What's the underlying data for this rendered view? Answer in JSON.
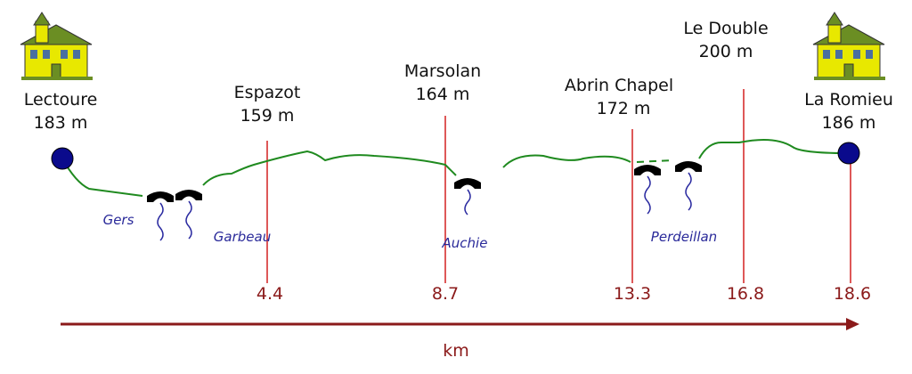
{
  "places": [
    {
      "name": "Lectoure",
      "elevation": "183 m"
    },
    {
      "name": "Espazot",
      "elevation": "159 m"
    },
    {
      "name": "Marsolan",
      "elevation": "164 m"
    },
    {
      "name": "Abrin Chapel",
      "elevation": "172 m"
    },
    {
      "name": "Le Double",
      "elevation": "200 m"
    },
    {
      "name": "La Romieu",
      "elevation": "186 m"
    }
  ],
  "distances": [
    "4.4",
    "8.7",
    "13.3",
    "16.8",
    "18.6"
  ],
  "rivers": [
    "Gers",
    "Garbeau",
    "Auchie",
    "Perdeillan"
  ],
  "axis_label": "km"
}
